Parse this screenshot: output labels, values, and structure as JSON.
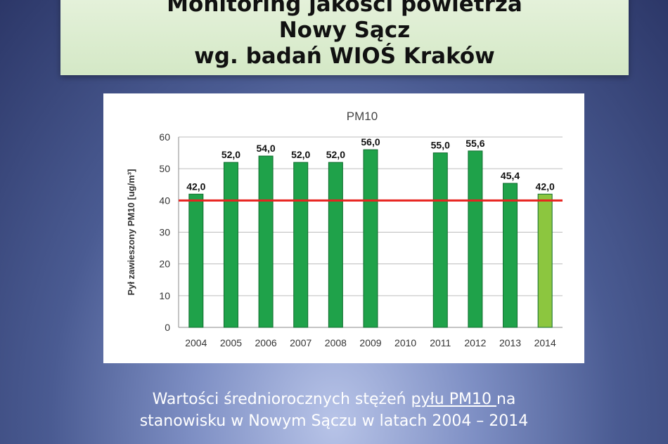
{
  "title": {
    "line1": "Monitoring jakości powietrza",
    "line2": "Nowy Sącz",
    "line3": "wg. badań WIOŚ Kraków"
  },
  "caption": {
    "part1": "Wartości średniorocznych stężeń ",
    "link": "pyłu PM10 ",
    "part2": "na",
    "line2": "stanowisku w Nowym Sączu w latach 2004 – 2014"
  },
  "chart_data": {
    "type": "bar",
    "title": "PM10",
    "ylabel": "Pył zawieszony PM10 [ug/m³]",
    "xlabel": "",
    "categories": [
      "2004",
      "2005",
      "2006",
      "2007",
      "2008",
      "2009",
      "2010",
      "2011",
      "2012",
      "2013",
      "2014"
    ],
    "values": [
      42.0,
      52.0,
      54.0,
      52.0,
      52.0,
      56.0,
      null,
      55.0,
      55.6,
      45.4,
      42.0
    ],
    "value_labels": [
      "42,0",
      "52,0",
      "54,0",
      "52,0",
      "52,0",
      "56,0",
      "",
      "55,0",
      "55,6",
      "45,4",
      "42,0"
    ],
    "ylim": [
      0,
      60
    ],
    "yticks": [
      0,
      10,
      20,
      30,
      40,
      50,
      60
    ],
    "reference_line": 40,
    "grid": true,
    "colors": {
      "bar": "#1fa24a",
      "bar_highlight": "#8cc63f",
      "reference_line": "#e8231f"
    }
  }
}
